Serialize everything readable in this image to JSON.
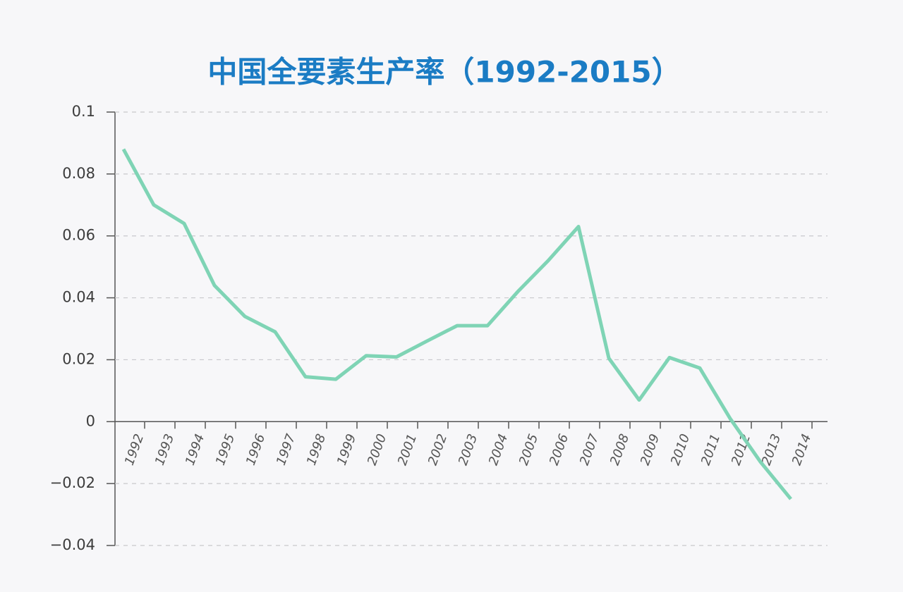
{
  "chart_data": {
    "type": "line",
    "title": "中国全要素生产率（1992-2015）",
    "categories": [
      "1992",
      "1993",
      "1994",
      "1995",
      "1996",
      "1997",
      "1998",
      "1999",
      "2000",
      "2001",
      "2002",
      "2003",
      "2004",
      "2005",
      "2006",
      "2007",
      "2008",
      "2009",
      "2010",
      "2011",
      "2012",
      "2013",
      "2014"
    ],
    "series": [
      {
        "name": "全要素生产率",
        "color": "#7fd4b5",
        "values": [
          0.088,
          0.07,
          0.064,
          0.044,
          0.034,
          0.029,
          0.0145,
          0.0137,
          0.0213,
          0.0209,
          0.026,
          0.031,
          0.031,
          0.042,
          0.052,
          0.063,
          0.0205,
          0.007,
          0.0207,
          0.0173,
          0.001,
          -0.013,
          -0.025
        ]
      }
    ],
    "ylim": [
      -0.04,
      0.1
    ],
    "yticks": [
      {
        "value": -0.04,
        "label": "−0.04"
      },
      {
        "value": -0.02,
        "label": "−0.02"
      },
      0,
      0.02,
      0.04,
      0.06,
      0.08,
      0.1
    ],
    "grid": true
  }
}
